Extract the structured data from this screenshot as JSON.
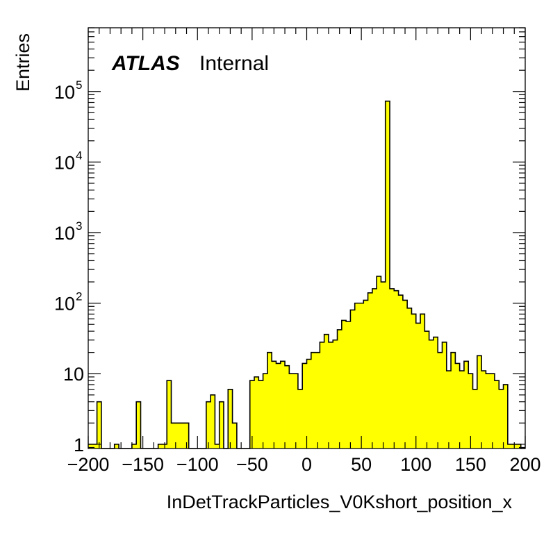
{
  "chart_data": {
    "type": "bar",
    "xlabel": "InDetTrackParticles_V0Kshort_position_x",
    "ylabel": "Entries",
    "annotation": {
      "experiment": "ATLAS",
      "status": "Internal"
    },
    "xlim": [
      -200,
      200
    ],
    "ylim": [
      0.87,
      800000
    ],
    "yscale": "log",
    "x_ticks": [
      "−200",
      "−150",
      "−100",
      "−50",
      "0",
      "50",
      "100",
      "150",
      "200"
    ],
    "y_ticks": [
      {
        "base": "1",
        "exp": ""
      },
      {
        "base": "10",
        "exp": ""
      },
      {
        "base": "10",
        "exp": "2"
      },
      {
        "base": "10",
        "exp": "3"
      },
      {
        "base": "10",
        "exp": "4"
      },
      {
        "base": "10",
        "exp": "5"
      }
    ],
    "fill_color": "#ffff00",
    "bin_width": 4,
    "bin_edges_start": -200,
    "values": [
      1,
      1,
      4,
      0,
      0,
      0,
      1,
      0,
      0,
      0,
      1,
      4,
      0,
      0,
      0,
      0,
      1,
      1,
      8,
      2,
      2,
      2,
      2,
      0,
      0,
      0,
      0,
      4,
      5,
      1,
      4,
      0,
      6,
      2,
      0,
      0,
      0,
      8,
      9,
      8,
      10,
      20,
      15,
      14,
      15,
      13,
      10,
      10,
      6,
      14,
      16,
      20,
      20,
      28,
      36,
      28,
      30,
      42,
      57,
      55,
      80,
      100,
      100,
      110,
      140,
      160,
      240,
      200,
      73000,
      160,
      150,
      130,
      110,
      85,
      70,
      52,
      70,
      40,
      30,
      33,
      20,
      28,
      11,
      20,
      14,
      11,
      15,
      10,
      6,
      18,
      11,
      10,
      10,
      8,
      6,
      7,
      1,
      1,
      1,
      0
    ]
  }
}
